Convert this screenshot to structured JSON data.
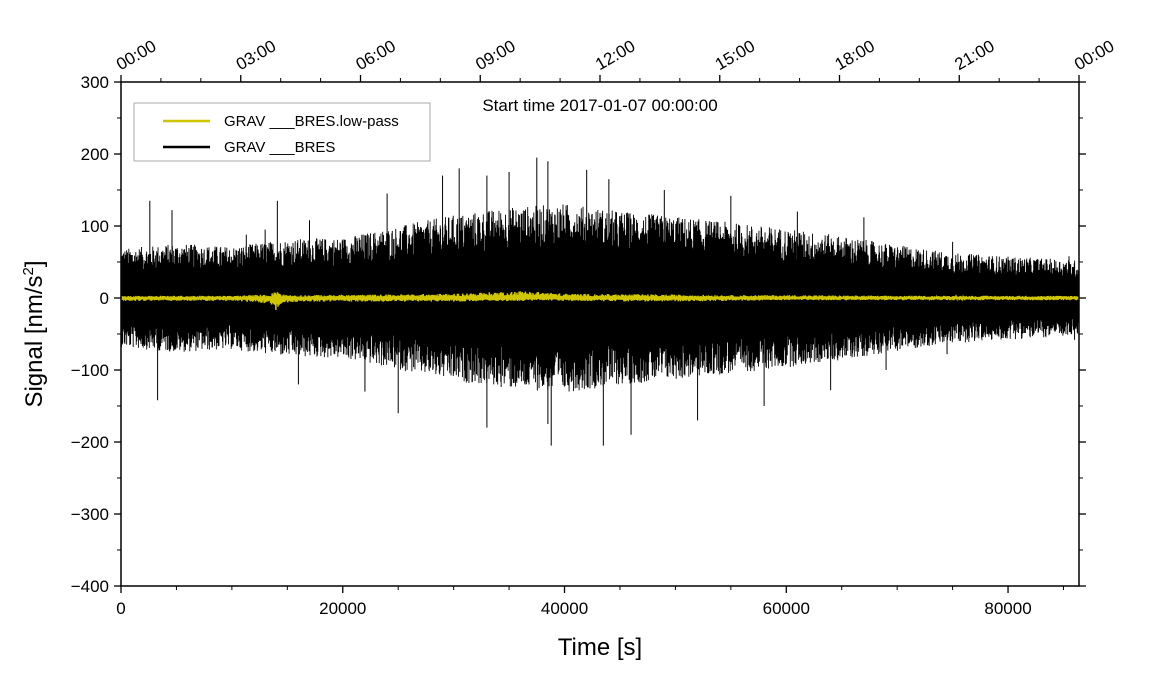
{
  "chart_data": {
    "type": "line",
    "annotation": "Start time 2017-01-07 00:00:00",
    "xlabel": "Time [s]",
    "ylabel_main": "Signal [nm/s",
    "ylabel_sup": "2",
    "ylabel_tail": "]",
    "xlim": [
      0,
      86400
    ],
    "ylim": [
      -400,
      300
    ],
    "x_ticks": [
      0,
      20000,
      40000,
      60000,
      80000
    ],
    "x_tick_labels": [
      "0",
      "20000",
      "40000",
      "60000",
      "80000"
    ],
    "y_ticks": [
      -400,
      -300,
      -200,
      -100,
      0,
      100,
      200,
      300
    ],
    "y_tick_labels": [
      "−400",
      "−300",
      "−200",
      "−100",
      "0",
      "100",
      "200",
      "300"
    ],
    "top_axis": {
      "ticks": [
        0,
        10800,
        21600,
        32400,
        43200,
        54000,
        64800,
        75600,
        86400
      ],
      "labels": [
        "00:00",
        "03:00",
        "06:00",
        "09:00",
        "12:00",
        "15:00",
        "18:00",
        "21:00",
        "00:00"
      ]
    },
    "series": [
      {
        "name": "GRAV ___BRES",
        "color": "#000000",
        "envelope": {
          "x": [
            0,
            5000,
            10000,
            15000,
            20000,
            25000,
            30000,
            35000,
            40000,
            45000,
            50000,
            55000,
            60000,
            65000,
            70000,
            75000,
            80000,
            86400
          ],
          "upper": [
            65,
            72,
            68,
            78,
            80,
            95,
            110,
            120,
            125,
            115,
            108,
            100,
            92,
            82,
            70,
            60,
            55,
            50
          ],
          "lower": [
            -65,
            -72,
            -68,
            -78,
            -80,
            -95,
            -110,
            -120,
            -125,
            -115,
            -108,
            -100,
            -92,
            -82,
            -70,
            -60,
            -55,
            -50
          ]
        },
        "spikes": [
          {
            "x": 2600,
            "y": 135
          },
          {
            "x": 4600,
            "y": 122
          },
          {
            "x": 11300,
            "y": 88
          },
          {
            "x": 13000,
            "y": 95
          },
          {
            "x": 14100,
            "y": 135
          },
          {
            "x": 17000,
            "y": 108
          },
          {
            "x": 24000,
            "y": 145
          },
          {
            "x": 29000,
            "y": 170
          },
          {
            "x": 30500,
            "y": 180
          },
          {
            "x": 33000,
            "y": 170
          },
          {
            "x": 35000,
            "y": 175
          },
          {
            "x": 37500,
            "y": 195
          },
          {
            "x": 38500,
            "y": 190
          },
          {
            "x": 42000,
            "y": 178
          },
          {
            "x": 44000,
            "y": 165
          },
          {
            "x": 49000,
            "y": 150
          },
          {
            "x": 55000,
            "y": 142
          },
          {
            "x": 61000,
            "y": 120
          },
          {
            "x": 67000,
            "y": 112
          },
          {
            "x": 75000,
            "y": 78
          },
          {
            "x": 85500,
            "y": 58
          },
          {
            "x": 3300,
            "y": -142
          },
          {
            "x": 16000,
            "y": -120
          },
          {
            "x": 22000,
            "y": -130
          },
          {
            "x": 25000,
            "y": -160
          },
          {
            "x": 33000,
            "y": -180
          },
          {
            "x": 38500,
            "y": -175
          },
          {
            "x": 38800,
            "y": -205
          },
          {
            "x": 43500,
            "y": -205
          },
          {
            "x": 46000,
            "y": -190
          },
          {
            "x": 52000,
            "y": -170
          },
          {
            "x": 58000,
            "y": -150
          },
          {
            "x": 64000,
            "y": -128
          },
          {
            "x": 69000,
            "y": -100
          },
          {
            "x": 74500,
            "y": -78
          },
          {
            "x": 86000,
            "y": -58
          }
        ]
      },
      {
        "name": "GRAV ___BRES.low-pass",
        "color": "#cfc600",
        "envelope": {
          "x": [
            0,
            10000,
            13500,
            14000,
            14500,
            16000,
            25000,
            30000,
            36500,
            37500,
            40000,
            48000,
            55000,
            60000,
            70000,
            80000,
            86400
          ],
          "upper": [
            3,
            3,
            5,
            12,
            5,
            4,
            5,
            6,
            10,
            9,
            6,
            5,
            4,
            4,
            3,
            3,
            3
          ],
          "lower": [
            -4,
            -4,
            -8,
            -18,
            -7,
            -5,
            -5,
            -5,
            -4,
            -3,
            -4,
            -5,
            -4,
            -3,
            -3,
            -3,
            -3
          ]
        }
      }
    ],
    "legend": {
      "position": "top-left",
      "entries": [
        {
          "label": "GRAV ___BRES.low-pass",
          "color": "#cfc600"
        },
        {
          "label": "GRAV ___BRES",
          "color": "#000000"
        }
      ]
    }
  }
}
